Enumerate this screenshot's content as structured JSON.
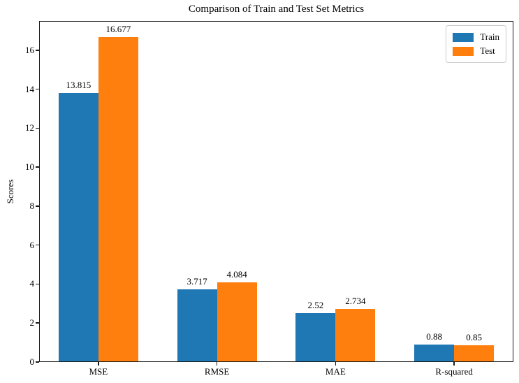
{
  "title": "Comparison of Train and Test Set Metrics",
  "colors": {
    "train": "#1f77b4",
    "test": "#ff7f0e",
    "spine": "#1a1a1a",
    "legend_border": "#cccccc",
    "background": "#ffffff",
    "text": "#000000"
  },
  "legend": {
    "items": [
      {
        "label": "Train",
        "color": "#1f77b4"
      },
      {
        "label": "Test",
        "color": "#ff7f0e"
      }
    ]
  },
  "chart_data": {
    "type": "bar",
    "title": "Comparison of Train and Test Set Metrics",
    "xlabel": "",
    "ylabel": "Scores",
    "categories": [
      "MSE",
      "RMSE",
      "MAE",
      "R-squared"
    ],
    "series": [
      {
        "name": "Train",
        "color": "#1f77b4",
        "values": [
          13.815,
          3.717,
          2.52,
          0.88
        ]
      },
      {
        "name": "Test",
        "color": "#ff7f0e",
        "values": [
          16.677,
          4.084,
          2.734,
          0.85
        ]
      }
    ],
    "value_labels": [
      [
        "13.815",
        "3.717",
        "2.52",
        "0.88"
      ],
      [
        "16.677",
        "4.084",
        "2.734",
        "0.85"
      ]
    ],
    "ylim": [
      0,
      17.5
    ],
    "yticks": [
      0,
      2,
      4,
      6,
      8,
      10,
      12,
      14,
      16
    ],
    "grid": false,
    "legend_position": "upper right"
  }
}
